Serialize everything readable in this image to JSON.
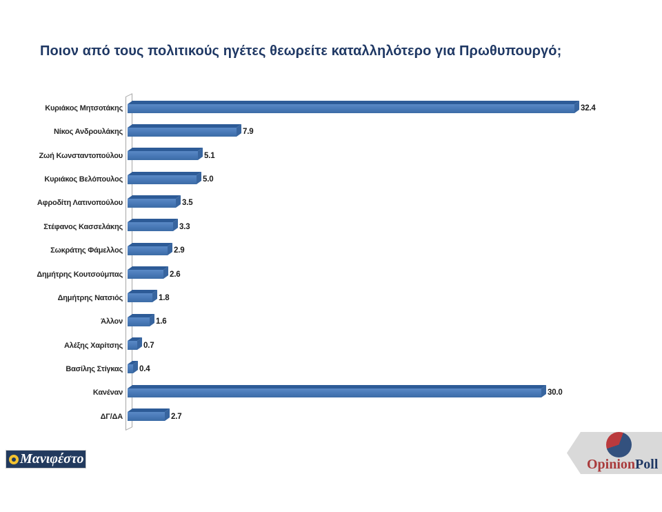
{
  "title": "Ποιον από τους πολιτικούς ηγέτες θεωρείτε καταλληλότερο για Πρωθυπουργό;",
  "chart_data": {
    "type": "bar",
    "orientation": "horizontal",
    "title": "Ποιον από τους πολιτικούς ηγέτες θεωρείτε καταλληλότερο για Πρωθυπουργό;",
    "categories": [
      "Κυριάκος Μητσοτάκης",
      "Νίκος Ανδρουλάκης",
      "Ζωή Κωνσταντοπούλου",
      "Κυριάκος Βελόπουλος",
      "Αφροδίτη Λατινοπούλου",
      "Στέφανος Κασσελάκης",
      "Σωκράτης Φάμελλος",
      "Δημήτρης Κουτσούμπας",
      "Δημήτρης Νατσιός",
      "Άλλον",
      "Αλέξης Χαρίτσης",
      "Βασίλης Στίγκας",
      "Κανέναν",
      "ΔΓ/ΔΑ"
    ],
    "values": [
      32.4,
      7.9,
      5.1,
      5.0,
      3.5,
      3.3,
      2.9,
      2.6,
      1.8,
      1.6,
      0.7,
      0.4,
      30.0,
      2.7
    ],
    "value_labels": [
      "32.4",
      "7.9",
      "5.1",
      "5.0",
      "3.5",
      "3.3",
      "2.9",
      "2.6",
      "1.8",
      "1.6",
      "0.7",
      "0.4",
      "30.0",
      "2.7"
    ],
    "xlim": [
      0,
      32.4
    ],
    "bar_face_color": "#4A79B8",
    "bar_top_color": "#2D5B97",
    "bar_end_color": "#38659F",
    "grid": false,
    "legend": false
  },
  "footer": {
    "manifesto": "Μανιφέστο",
    "opinion": "Opinion",
    "poll": "Poll"
  }
}
